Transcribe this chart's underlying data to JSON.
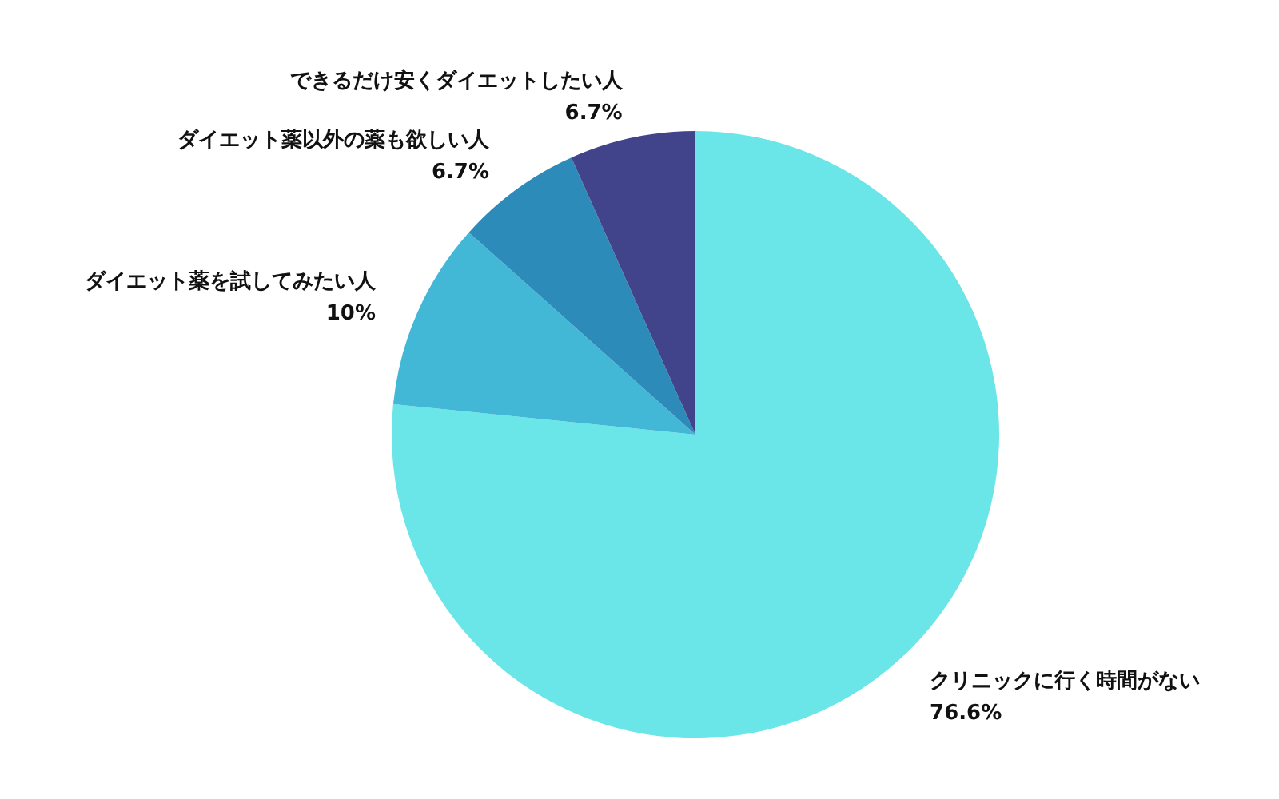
{
  "chart_data": {
    "type": "pie",
    "categories": [
      "クリニックに行く時間がない",
      "ダイエット薬を試してみたい人",
      "ダイエット薬以外の薬も欲しい人",
      "できるだけ安くダイエットしたい人"
    ],
    "values": [
      76.6,
      10,
      6.7,
      6.7
    ],
    "value_labels": [
      "76.6%",
      "10%",
      "6.7%",
      "6.7%"
    ],
    "colors": [
      "#6ae5e8",
      "#42b8d6",
      "#2d8bba",
      "#41448a"
    ]
  }
}
